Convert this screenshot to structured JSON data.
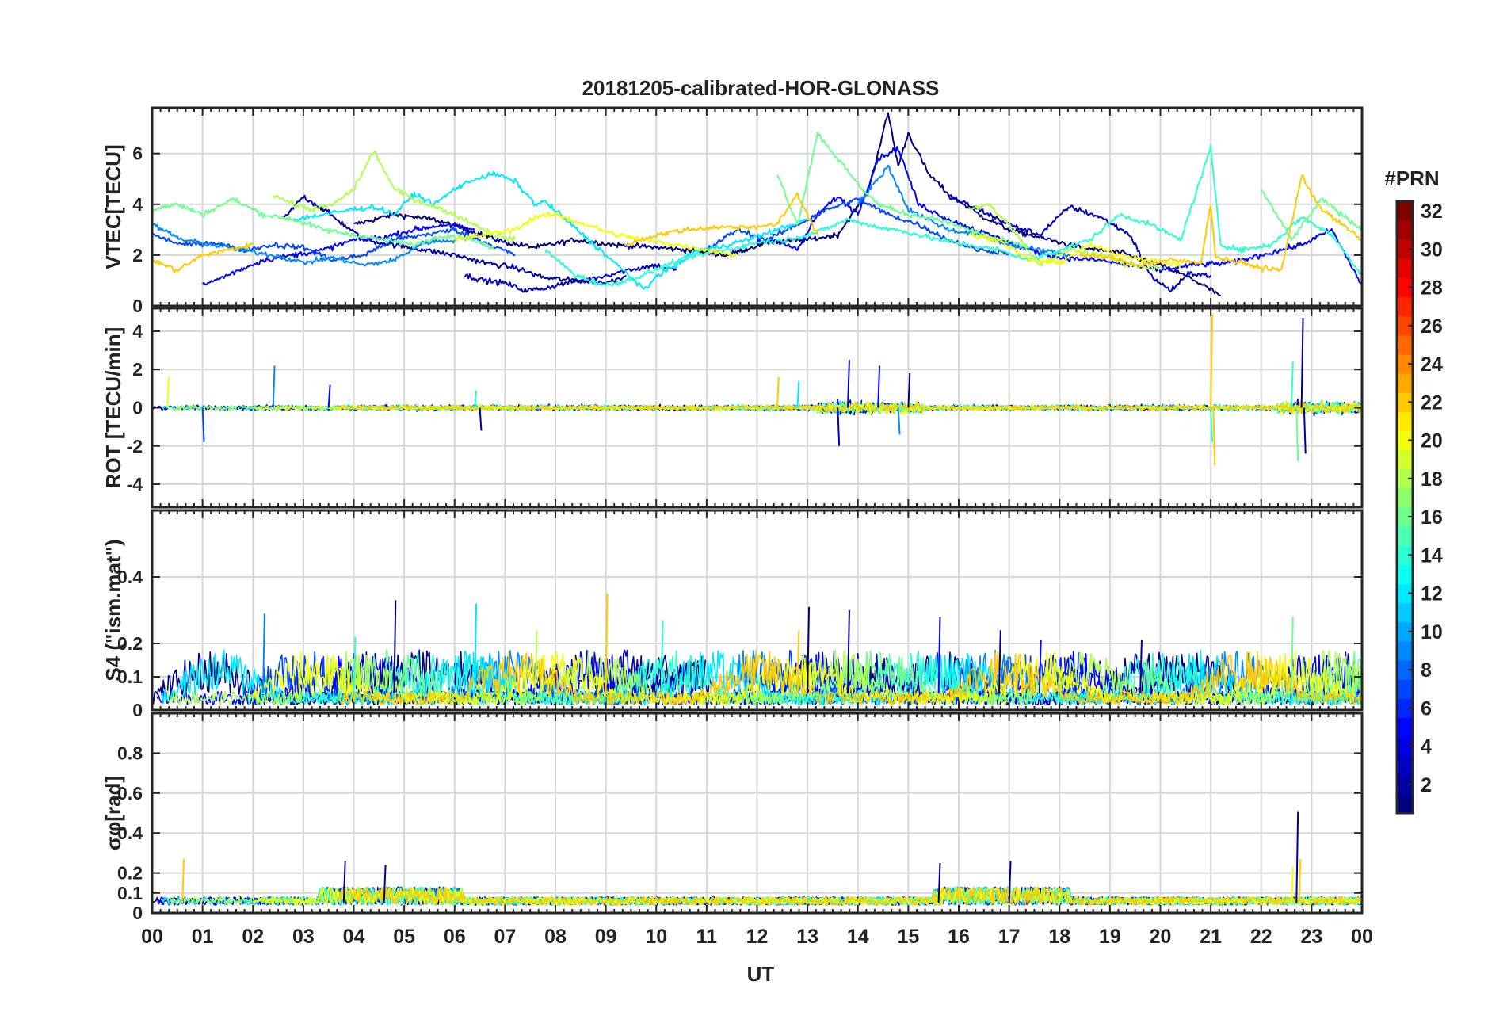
{
  "chart_data": {
    "type": "line",
    "title": "20181205-calibrated-HOR-GLONASS",
    "xlabel": "UT",
    "x_range": [
      0,
      24
    ],
    "x_ticks": [
      "00",
      "01",
      "02",
      "03",
      "04",
      "05",
      "06",
      "07",
      "08",
      "09",
      "10",
      "11",
      "12",
      "13",
      "14",
      "15",
      "16",
      "17",
      "18",
      "19",
      "20",
      "21",
      "22",
      "23",
      "00"
    ],
    "colorbar": {
      "title": "#PRN",
      "range": [
        1,
        32
      ],
      "ticks": [
        "2",
        "4",
        "6",
        "8",
        "10",
        "12",
        "14",
        "16",
        "18",
        "20",
        "22",
        "24",
        "26",
        "28",
        "30",
        "32"
      ]
    },
    "panels": [
      {
        "ylabel": "VTEC[TECU]",
        "ylim": [
          0,
          7.8
        ],
        "yticks": [
          0,
          2,
          4,
          6
        ],
        "ytick_labels": [
          "0",
          "2",
          "4",
          "6"
        ],
        "series": [
          {
            "name": "PRN 1",
            "prn": 1,
            "x": [
              4.0,
              4.8,
              5.6,
              6.4,
              7.0,
              7.6,
              8.4,
              9.2,
              10.0,
              10.6,
              11.4,
              12.2,
              13.0,
              13.6,
              14.2,
              14.6,
              14.8,
              15.0,
              15.4,
              15.8,
              16.4,
              17.0,
              17.6,
              18.4,
              19.2,
              20.0,
              20.6,
              21.2
            ],
            "y": [
              3.2,
              3.6,
              3.4,
              2.9,
              2.5,
              2.3,
              2.6,
              2.4,
              2.3,
              2.2,
              2.0,
              2.5,
              2.6,
              2.8,
              4.5,
              7.6,
              5.5,
              6.8,
              5.2,
              4.4,
              3.6,
              3.0,
              2.7,
              2.3,
              2.1,
              1.6,
              1.1,
              0.4
            ]
          },
          {
            "name": "PRN 2",
            "prn": 2,
            "x": [
              2.6,
              3.0,
              3.4,
              3.8,
              4.2,
              4.8,
              5.4,
              6.0,
              6.6,
              7.2,
              7.8,
              8.4,
              9.0,
              9.4
            ],
            "y": [
              3.4,
              4.3,
              3.8,
              3.2,
              2.6,
              2.4,
              2.2,
              2.0,
              1.7,
              1.5,
              1.1,
              1.0,
              0.9,
              1.2
            ]
          },
          {
            "name": "PRN 3",
            "prn": 3,
            "x": [
              6.2,
              6.6,
              7.0,
              7.4,
              7.8,
              8.2,
              8.8,
              9.4,
              10.0,
              10.4,
              15.8,
              16.4,
              17.0,
              17.6,
              18.2,
              18.8,
              19.4,
              19.8,
              20.2,
              20.6,
              21.0
            ],
            "y": [
              1.2,
              1.0,
              0.9,
              0.6,
              0.7,
              0.9,
              1.1,
              1.4,
              1.6,
              1.4,
              4.3,
              3.8,
              3.2,
              2.8,
              3.9,
              3.5,
              2.8,
              1.2,
              0.6,
              1.3,
              1.2
            ]
          },
          {
            "name": "PRN 5",
            "prn": 5,
            "x": [
              1.0,
              1.6,
              2.2,
              2.8,
              3.4,
              4.0,
              4.6,
              5.2,
              5.8,
              6.4,
              12.0,
              12.4,
              12.8,
              13.2,
              13.6,
              14.0,
              14.4,
              14.8,
              15.2,
              15.8,
              16.6,
              17.4,
              18.0,
              18.8,
              19.4,
              20.0,
              20.6,
              21.4,
              22.0,
              22.8,
              23.4,
              24.0
            ],
            "y": [
              0.8,
              1.3,
              1.8,
              2.0,
              2.2,
              2.6,
              2.7,
              3.0,
              3.2,
              3.0,
              2.5,
              2.6,
              2.2,
              3.6,
              4.3,
              3.6,
              5.8,
              6.2,
              4.0,
              3.4,
              2.8,
              2.2,
              1.9,
              1.8,
              1.6,
              1.4,
              1.6,
              1.7,
              2.0,
              2.4,
              3.0,
              0.8
            ]
          },
          {
            "name": "PRN 7",
            "prn": 7,
            "x": [
              0.0,
              0.6,
              1.2,
              1.8,
              2.4,
              3.0,
              3.6,
              4.2,
              4.8,
              5.4,
              6.0,
              6.6,
              7.2,
              11.0,
              11.6,
              12.2,
              12.8,
              13.4,
              14.0,
              14.6,
              15.2,
              15.8,
              16.4,
              17.0
            ],
            "y": [
              2.8,
              2.4,
              2.5,
              2.2,
              2.4,
              2.3,
              1.8,
              2.0,
              2.6,
              2.8,
              3.0,
              2.5,
              2.0,
              2.2,
              3.0,
              2.6,
              3.2,
              3.8,
              4.2,
              3.6,
              3.2,
              2.6,
              2.2,
              2.1
            ]
          },
          {
            "name": "PRN 9",
            "prn": 9,
            "x": [
              0.0,
              0.6,
              1.2,
              1.8,
              2.4,
              3.0,
              3.6,
              4.2,
              4.8,
              5.4,
              6.0,
              14.0,
              14.6,
              15.0,
              15.4,
              15.8,
              16.4,
              17.0,
              17.6,
              18.2
            ],
            "y": [
              3.2,
              2.6,
              2.4,
              2.2,
              2.0,
              1.7,
              1.9,
              1.6,
              1.8,
              2.5,
              2.6,
              4.0,
              5.5,
              3.8,
              3.4,
              3.0,
              2.8,
              2.4,
              2.2,
              2.0
            ]
          },
          {
            "name": "PRN 12",
            "prn": 12,
            "x": [
              2.8,
              3.4,
              4.0,
              4.4,
              4.8,
              5.2,
              5.6,
              6.0,
              6.4,
              6.8,
              7.2,
              7.6,
              7.8,
              9.8,
              10.0,
              10.4,
              10.8,
              11.2,
              11.8,
              12.4,
              13.0
            ],
            "y": [
              3.4,
              3.6,
              3.8,
              3.9,
              3.6,
              4.4,
              4.0,
              4.6,
              5.0,
              5.2,
              4.9,
              4.0,
              4.1,
              0.6,
              1.2,
              1.6,
              2.2,
              2.3,
              2.6,
              3.0,
              3.4
            ]
          },
          {
            "name": "PRN 14",
            "prn": 14,
            "x": [
              7.8,
              8.4,
              9.0,
              9.6,
              10.2,
              10.8,
              11.4,
              12.0,
              12.6,
              13.2,
              13.8,
              14.4,
              15.0,
              15.6,
              16.2,
              16.8,
              17.4,
              18.0,
              18.6,
              19.2,
              19.8,
              20.4,
              21.0,
              21.2,
              21.6,
              22.2,
              22.8,
              23.4,
              24.0
            ],
            "y": [
              2.2,
              1.2,
              0.8,
              1.1,
              1.6,
              2.0,
              2.2,
              2.5,
              2.6,
              2.9,
              3.4,
              3.1,
              2.9,
              2.6,
              2.4,
              2.2,
              1.8,
              2.2,
              2.6,
              3.6,
              3.2,
              2.6,
              6.2,
              2.4,
              2.2,
              2.4,
              3.5,
              2.8,
              1.2
            ]
          },
          {
            "name": "PRN 16",
            "prn": 16,
            "x": [
              0.0,
              0.5,
              1.0,
              1.6,
              2.2,
              2.8,
              3.4,
              4.0,
              4.6,
              5.2,
              5.8,
              6.4,
              6.8,
              12.4,
              12.8,
              13.2,
              13.6,
              14.0,
              14.4,
              15.0,
              15.6,
              16.2,
              16.8,
              17.4,
              22.0,
              22.6,
              23.2,
              24.0
            ],
            "y": [
              3.8,
              4.0,
              3.6,
              4.2,
              3.6,
              3.4,
              3.0,
              2.8,
              2.6,
              2.4,
              2.8,
              2.6,
              2.2,
              5.2,
              3.2,
              6.8,
              5.8,
              4.8,
              4.0,
              3.6,
              3.4,
              3.0,
              2.6,
              2.3,
              4.6,
              2.6,
              4.2,
              3.0
            ]
          },
          {
            "name": "PRN 18",
            "prn": 18,
            "x": [
              2.4,
              2.8,
              3.2,
              3.6,
              4.0,
              4.4,
              4.8,
              5.2,
              5.6,
              6.0,
              6.4,
              6.8,
              7.2,
              16.2,
              16.6,
              17.0,
              17.6,
              18.2,
              18.8,
              19.4,
              20.0
            ],
            "y": [
              4.4,
              4.0,
              3.8,
              4.0,
              4.6,
              6.1,
              4.6,
              4.2,
              3.9,
              3.6,
              3.2,
              2.8,
              2.6,
              3.8,
              4.0,
              3.2,
              1.6,
              2.2,
              2.0,
              1.6,
              1.5
            ]
          },
          {
            "name": "PRN 20",
            "prn": 20,
            "x": [
              6.0,
              6.6,
              7.2,
              7.6,
              8.0,
              8.6,
              9.2,
              9.8,
              10.4,
              11.0,
              11.6,
              16.2,
              16.8,
              17.4,
              18.0,
              18.6,
              19.2,
              19.8,
              20.4
            ],
            "y": [
              2.6,
              2.8,
              3.0,
              3.5,
              3.6,
              3.2,
              2.8,
              2.6,
              2.4,
              2.2,
              2.0,
              2.8,
              2.6,
              1.8,
              1.7,
              2.4,
              2.0,
              1.8,
              1.6
            ]
          },
          {
            "name": "PRN 22",
            "prn": 22,
            "x": [
              0.0,
              0.5,
              1.0,
              1.5,
              2.0,
              9.4,
              10.0,
              10.6,
              11.2,
              11.8,
              12.4,
              12.8,
              13.2,
              18.4,
              19.0,
              19.6,
              20.2,
              20.8,
              21.0,
              21.1,
              21.4,
              22.0,
              22.4,
              22.8,
              23.2,
              23.6,
              24.0
            ],
            "y": [
              1.8,
              1.4,
              2.0,
              2.2,
              2.4,
              2.4,
              2.8,
              3.0,
              3.1,
              3.1,
              3.2,
              4.4,
              2.8,
              2.0,
              1.9,
              1.6,
              1.8,
              1.7,
              4.0,
              1.9,
              1.8,
              1.5,
              1.4,
              5.1,
              3.8,
              3.2,
              2.6
            ]
          }
        ]
      },
      {
        "ylabel": "ROT [TECU/min]",
        "ylim": [
          -5.2,
          5.2
        ],
        "yticks": [
          -4,
          -2,
          0,
          2,
          4
        ],
        "ytick_labels": [
          "-4",
          "-2",
          "0",
          "2",
          "4"
        ],
        "spikes": [
          {
            "prn": 7,
            "x": 1.0,
            "y": -1.8
          },
          {
            "prn": 9,
            "x": 2.4,
            "y": 2.2
          },
          {
            "prn": 5,
            "x": 3.5,
            "y": 1.2
          },
          {
            "prn": 14,
            "x": 6.4,
            "y": 0.9
          },
          {
            "prn": 2,
            "x": 6.5,
            "y": -1.2
          },
          {
            "prn": 12,
            "x": 12.8,
            "y": 1.4
          },
          {
            "prn": 22,
            "x": 12.4,
            "y": 1.6
          },
          {
            "prn": 3,
            "x": 13.8,
            "y": 2.5
          },
          {
            "prn": 3,
            "x": 13.6,
            "y": -2.0
          },
          {
            "prn": 5,
            "x": 14.4,
            "y": 2.2
          },
          {
            "prn": 9,
            "x": 14.8,
            "y": -1.4
          },
          {
            "prn": 1,
            "x": 15.0,
            "y": 1.8
          },
          {
            "prn": 14,
            "x": 21.0,
            "y": -1.8
          },
          {
            "prn": 22,
            "x": 21.0,
            "y": 4.9
          },
          {
            "prn": 22,
            "x": 21.05,
            "y": -3.0
          },
          {
            "prn": 16,
            "x": 22.7,
            "y": -2.8
          },
          {
            "prn": 14,
            "x": 22.6,
            "y": 2.4
          },
          {
            "prn": 2,
            "x": 22.8,
            "y": 4.7
          },
          {
            "prn": 2,
            "x": 22.85,
            "y": -2.4
          },
          {
            "prn": 20,
            "x": 0.3,
            "y": 1.6
          }
        ]
      },
      {
        "ylabel": "S4 (\"ism.mat\")",
        "ylim": [
          0,
          0.6
        ],
        "yticks": [
          0,
          0.1,
          0.2,
          0.4
        ],
        "ytick_labels": [
          "0",
          "0.1",
          "0.2",
          "0.4"
        ],
        "spikes": [
          {
            "prn": 9,
            "x": 2.2,
            "y": 0.29
          },
          {
            "prn": 1,
            "x": 4.8,
            "y": 0.33
          },
          {
            "prn": 12,
            "x": 6.4,
            "y": 0.32
          },
          {
            "prn": 22,
            "x": 9.0,
            "y": 0.35
          },
          {
            "prn": 14,
            "x": 10.1,
            "y": 0.27
          },
          {
            "prn": 1,
            "x": 13.0,
            "y": 0.31
          },
          {
            "prn": 1,
            "x": 13.8,
            "y": 0.3
          },
          {
            "prn": 22,
            "x": 12.8,
            "y": 0.24
          },
          {
            "prn": 1,
            "x": 16.8,
            "y": 0.24
          },
          {
            "prn": 5,
            "x": 17.6,
            "y": 0.21
          },
          {
            "prn": 2,
            "x": 19.6,
            "y": 0.21
          },
          {
            "prn": 16,
            "x": 22.6,
            "y": 0.28
          },
          {
            "prn": 12,
            "x": 24.0,
            "y": 0.28
          },
          {
            "prn": 5,
            "x": 15.6,
            "y": 0.28
          },
          {
            "prn": 18,
            "x": 7.6,
            "y": 0.24
          },
          {
            "prn": 14,
            "x": 4.0,
            "y": 0.22
          }
        ]
      },
      {
        "ylabel": "σφ[rad]",
        "ylim": [
          0,
          1.0
        ],
        "yticks": [
          0,
          0.1,
          0.2,
          0.4,
          0.6,
          0.8
        ],
        "ytick_labels": [
          "0",
          "0.1",
          "0.2",
          "0.4",
          "0.6",
          "0.8"
        ],
        "spikes": [
          {
            "prn": 22,
            "x": 0.6,
            "y": 0.27
          },
          {
            "prn": 2,
            "x": 22.7,
            "y": 0.51
          },
          {
            "prn": 22,
            "x": 22.75,
            "y": 0.27
          },
          {
            "prn": 20,
            "x": 22.6,
            "y": 0.23
          },
          {
            "prn": 1,
            "x": 3.8,
            "y": 0.26
          },
          {
            "prn": 2,
            "x": 4.6,
            "y": 0.24
          },
          {
            "prn": 1,
            "x": 15.6,
            "y": 0.25
          },
          {
            "prn": 1,
            "x": 17.0,
            "y": 0.26
          }
        ]
      }
    ]
  }
}
